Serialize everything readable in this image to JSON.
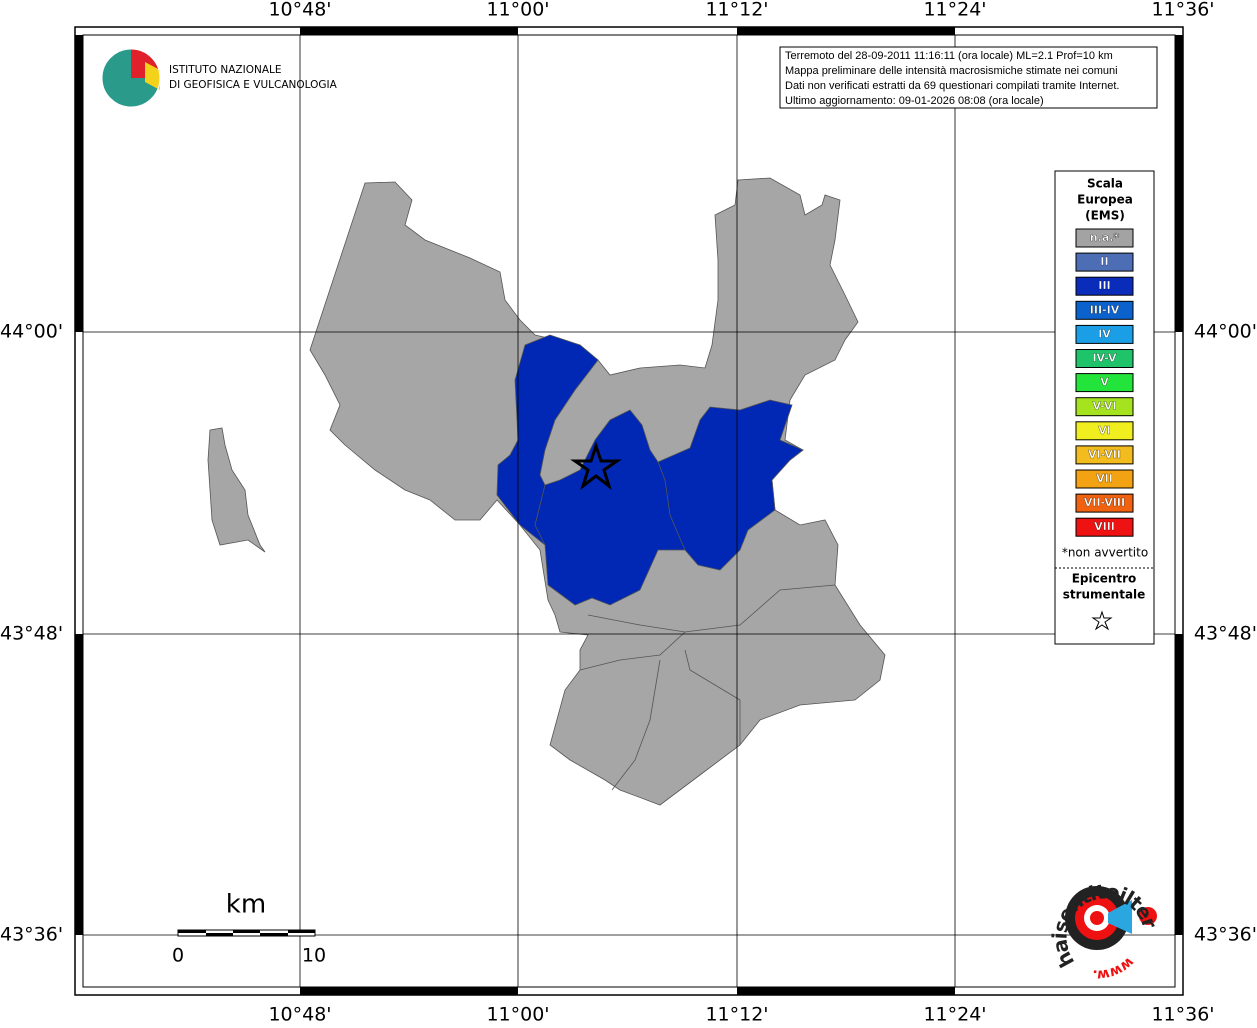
{
  "header": {
    "institute": [
      "ISTITUTO NAZIONALE",
      "DI GEOFISICA E VULCANOLOGIA"
    ]
  },
  "info": [
    "Terremoto del 28-09-2011 11:16:11 (ora locale) ML=2.1 Prof=10 km",
    "Mappa preliminare delle intensità macrosismiche stimate nei comuni",
    "Dati non verificati estratti da 69 questionari compilati tramite Internet.",
    "Ultimo aggiornamento: 09-01-2026 08:08 (ora locale)"
  ],
  "graticule": {
    "longitudes": [
      "10°48'",
      "11°00'",
      "11°12'",
      "11°24'",
      "11°36'"
    ],
    "latitudes": [
      "44°00'",
      "43°48'",
      "43°36'"
    ]
  },
  "legend": {
    "title": [
      "Scala",
      "Europea",
      "(EMS)"
    ],
    "items": [
      {
        "label": "n.a.*",
        "color": "#a3a3a3"
      },
      {
        "label": "II",
        "color": "#4d6db4"
      },
      {
        "label": "III",
        "color": "#0a2cba"
      },
      {
        "label": "III-IV",
        "color": "#0b62cc"
      },
      {
        "label": "IV",
        "color": "#1a9fe6"
      },
      {
        "label": "IV-V",
        "color": "#1fc46a"
      },
      {
        "label": "V",
        "color": "#22e43a"
      },
      {
        "label": "V-VI",
        "color": "#a6e31f"
      },
      {
        "label": "VI",
        "color": "#f0ee1e"
      },
      {
        "label": "VI-VII",
        "color": "#f2bb1e"
      },
      {
        "label": "VII",
        "color": "#f2a212"
      },
      {
        "label": "VII-VIII",
        "color": "#f0620f"
      },
      {
        "label": "VIII",
        "color": "#ee1212"
      }
    ],
    "footnote": "*non avvertito",
    "epicenter": [
      "Epicentro",
      "strumentale"
    ]
  },
  "scalebar": {
    "unit": "km",
    "start": "0",
    "end": "10"
  },
  "logo": {
    "site": "haisentitoilterremoto.it",
    "www": "www."
  }
}
